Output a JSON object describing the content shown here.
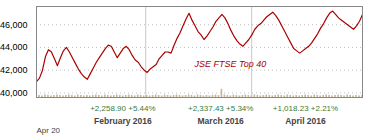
{
  "chart_data": {
    "type": "line",
    "series": [
      {
        "name": "JSE FTSE Top 40",
        "type": "line",
        "color": "#aa0000",
        "values": [
          41000,
          41300,
          42000,
          43200,
          43800,
          43600,
          43000,
          42400,
          43100,
          43700,
          44000,
          43600,
          43100,
          42600,
          42100,
          41700,
          41400,
          41200,
          41700,
          42200,
          42700,
          43100,
          43500,
          43900,
          44200,
          44100,
          43600,
          43100,
          43500,
          43900,
          44100,
          43800,
          43300,
          42900,
          42700,
          42300,
          42000,
          41800,
          42100,
          42300,
          42500,
          43000,
          43300,
          43600,
          43600,
          43500,
          44200,
          44800,
          45300,
          45900,
          46500,
          47000,
          46400,
          45900,
          45400,
          45100,
          44700,
          45000,
          45400,
          45800,
          46300,
          46600,
          46900,
          46600,
          46100,
          45500,
          45000,
          44600,
          44300,
          44100,
          44400,
          44700,
          45100,
          45600,
          45900,
          46100,
          46400,
          46700,
          46900,
          47100,
          46800,
          46400,
          45900,
          45400,
          44900,
          44400,
          43900,
          43700,
          43500,
          43700,
          43900,
          44100,
          44400,
          44800,
          45200,
          45700,
          46100,
          46600,
          47000,
          47200,
          46900,
          46600,
          46400,
          46200,
          46000,
          45800,
          45600,
          45900,
          46300,
          46900
        ]
      },
      {
        "type": "bar",
        "color": "#c8b89a",
        "values": [
          39757.5,
          39780,
          39735,
          39825,
          39780,
          39735,
          39780,
          39825,
          39780,
          39735,
          39780,
          39825,
          39780,
          39735,
          39825,
          39780,
          39735,
          39780,
          39735,
          39780,
          39825,
          39780,
          39735,
          39825,
          39780,
          39735,
          39780,
          39825,
          39780,
          39735,
          39780,
          39825,
          39780,
          39735,
          39825,
          39780,
          39735,
          39780,
          39735,
          39780,
          39825,
          39780,
          39735,
          39825,
          39780,
          39735,
          39780,
          39825,
          39780,
          39735,
          39780,
          39825,
          39780,
          39735,
          39825,
          39780,
          39735,
          39780,
          39735,
          39780,
          39825,
          39780,
          40320,
          39825,
          39780,
          39735,
          39825,
          39780,
          39735,
          39780,
          39825,
          39780,
          39735,
          39825,
          39780,
          39735,
          39780,
          39825,
          39780,
          39735,
          39780,
          39825,
          39780,
          39735,
          39825,
          39780,
          39735,
          39780,
          39735,
          39780,
          39825,
          39780,
          39735,
          39825,
          39780,
          39735,
          39780,
          39825,
          39780,
          39735,
          39780,
          39825,
          39780,
          39735,
          39825,
          39780,
          39735,
          39780,
          39735,
          39780
        ]
      }
    ],
    "annotations": [
      "Apr 20"
    ],
    "sections": [
      {
        "label": "February 2016",
        "change": "+2,258.90 +5.44%",
        "color": "#3a7a3a"
      },
      {
        "label": "March 2016",
        "change": "+2,337.43 +5.34%",
        "color": "#3a7a3a"
      },
      {
        "label": "April 2016",
        "change": "+1,018.23 +2.21%",
        "color": "#3a7a3a"
      }
    ],
    "ylim": [
      39600,
      47600
    ],
    "yticks": [
      {
        "value": 40000,
        "label": "40,000"
      },
      {
        "value": 42000,
        "label": "42,000"
      },
      {
        "value": 44000,
        "label": "44,000"
      },
      {
        "value": 46000,
        "label": "46,000"
      }
    ],
    "grid": true,
    "legend": false
  }
}
